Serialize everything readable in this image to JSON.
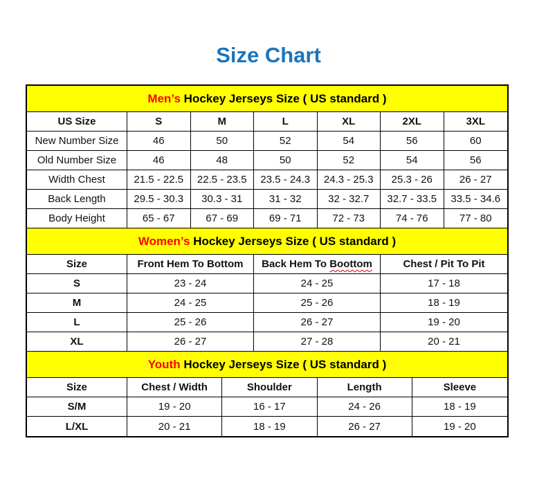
{
  "page": {
    "title": "Size Chart",
    "title_color": "#1b75bc",
    "accent_red": "#ff0000",
    "band_yellow": "#ffff00"
  },
  "sections": [
    {
      "id": "mens",
      "title_highlight": "Men’s",
      "title_rest": " Hockey Jerseys Size ( US standard )",
      "columns": [
        "US Size",
        "S",
        "M",
        "L",
        "XL",
        "2XL",
        "3XL"
      ],
      "rows": [
        {
          "label": "New Number Size",
          "values": [
            "46",
            "50",
            "52",
            "54",
            "56",
            "60"
          ]
        },
        {
          "label": "Old Number Size",
          "values": [
            "46",
            "48",
            "50",
            "52",
            "54",
            "56"
          ]
        },
        {
          "label": "Width Chest",
          "values": [
            "21.5 - 22.5",
            "22.5 - 23.5",
            "23.5 - 24.3",
            "24.3 - 25.3",
            "25.3 - 26",
            "26 - 27"
          ]
        },
        {
          "label": "Back Length",
          "values": [
            "29.5 - 30.3",
            "30.3 - 31",
            "31 - 32",
            "32 - 32.7",
            "32.7 - 33.5",
            "33.5 - 34.6"
          ]
        },
        {
          "label": "Body Height",
          "values": [
            "65 - 67",
            "67 - 69",
            "69 - 71",
            "72 - 73",
            "74 - 76",
            "77 - 80"
          ]
        }
      ]
    },
    {
      "id": "womens",
      "title_highlight": "Women’s",
      "title_rest": " Hockey Jerseys Size ( US standard )",
      "columns": [
        "Size",
        "Front Hem To Bottom",
        {
          "label": "Back Hem To ",
          "wavy": "Boottom"
        },
        "Chest / Pit To Pit"
      ],
      "rows": [
        {
          "label": "S",
          "values": [
            "23 - 24",
            "24 - 25",
            "17 - 18"
          ]
        },
        {
          "label": "M",
          "values": [
            "24 - 25",
            "25 - 26",
            "18 - 19"
          ]
        },
        {
          "label": "L",
          "values": [
            "25 - 26",
            "26 - 27",
            "19 - 20"
          ]
        },
        {
          "label": "XL",
          "values": [
            "26 - 27",
            "27 - 28",
            "20 - 21"
          ]
        }
      ]
    },
    {
      "id": "youth",
      "title_highlight": "Youth",
      "title_rest": " Hockey Jerseys Size ( US standard )",
      "columns": [
        "Size",
        "Chest / Width",
        "Shoulder",
        "Length",
        "Sleeve"
      ],
      "rows": [
        {
          "label": "S/M",
          "values": [
            "19 - 20",
            "16 - 17",
            "24 - 26",
            "18 - 19"
          ]
        },
        {
          "label": "L/XL",
          "values": [
            "20 - 21",
            "18 - 19",
            "26 - 27",
            "19 - 20"
          ]
        }
      ]
    }
  ]
}
